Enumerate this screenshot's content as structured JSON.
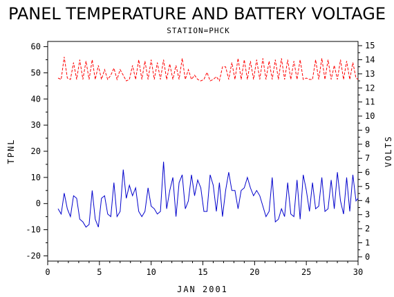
{
  "chart_data": {
    "type": "line",
    "title": "PANEL TEMPERATURE AND BATTERY VOLTAGE",
    "subtitle": "STATION=PHCK",
    "xlabel": "JAN 2001",
    "ylabel": "TPNL",
    "y2label": "VOLTS",
    "xlim": [
      0,
      30
    ],
    "ylim": [
      -22,
      62
    ],
    "y2lim": [
      -0.3,
      15.3
    ],
    "xticks": [
      "0",
      "5",
      "10",
      "15",
      "20",
      "25",
      "30"
    ],
    "yticks": [
      "-20",
      "-10",
      "0",
      "10",
      "20",
      "30",
      "40",
      "50",
      "60"
    ],
    "y2ticks": [
      "0",
      "1",
      "2",
      "3",
      "4",
      "5",
      "6",
      "7",
      "8",
      "9",
      "10",
      "11",
      "12",
      "13",
      "14",
      "15"
    ],
    "grid": false,
    "series": [
      {
        "axis": "left",
        "color": "#0000cc",
        "dash": "solid",
        "x": [
          1.0,
          1.3,
          1.6,
          1.9,
          2.2,
          2.5,
          2.8,
          3.1,
          3.4,
          3.7,
          4.0,
          4.3,
          4.6,
          4.9,
          5.2,
          5.5,
          5.8,
          6.1,
          6.4,
          6.7,
          7.0,
          7.3,
          7.6,
          7.9,
          8.2,
          8.5,
          8.8,
          9.1,
          9.4,
          9.7,
          10.0,
          10.3,
          10.6,
          10.9,
          11.2,
          11.5,
          11.8,
          12.1,
          12.4,
          12.7,
          13.0,
          13.3,
          13.6,
          13.9,
          14.2,
          14.5,
          14.8,
          15.1,
          15.4,
          15.7,
          16.0,
          16.3,
          16.6,
          16.9,
          17.2,
          17.5,
          17.8,
          18.1,
          18.4,
          18.7,
          19.0,
          19.3,
          19.6,
          19.9,
          20.2,
          20.5,
          20.8,
          21.1,
          21.4,
          21.7,
          22.0,
          22.3,
          22.6,
          22.9,
          23.2,
          23.5,
          23.8,
          24.1,
          24.4,
          24.7,
          25.0,
          25.3,
          25.6,
          25.9,
          26.2,
          26.5,
          26.8,
          27.1,
          27.4,
          27.7,
          28.0,
          28.3,
          28.6,
          28.9,
          29.2,
          29.5,
          29.8,
          30.0
        ],
        "y": [
          -2,
          -4,
          4,
          -2,
          -5,
          3,
          2,
          -6,
          -7,
          -9,
          -8,
          5,
          -6,
          -9,
          2,
          3,
          -4,
          -5,
          8,
          -5,
          -3,
          13,
          2,
          7,
          3,
          6,
          -3,
          -5,
          -3,
          6,
          -1,
          -2,
          -4,
          -3,
          16,
          -2,
          5,
          10,
          -5,
          8,
          11,
          -2,
          1,
          11,
          3,
          9,
          6,
          -3,
          -3,
          11,
          7,
          -3,
          8,
          -5,
          5,
          12,
          5,
          5,
          -2,
          5,
          6,
          10,
          6,
          3,
          5,
          3,
          -1,
          -5,
          -3,
          10,
          -7,
          -6,
          -2,
          -5,
          8,
          -4,
          -5,
          9,
          -6,
          11,
          5,
          -3,
          8,
          -2,
          -1,
          10,
          -3,
          -2,
          9,
          -2,
          12,
          1,
          -4,
          10,
          -3,
          11,
          1,
          2
        ]
      },
      {
        "axis": "right",
        "color": "#ff0000",
        "dash": "dashed",
        "x": [
          1.0,
          1.3,
          1.6,
          1.9,
          2.2,
          2.5,
          2.8,
          3.1,
          3.4,
          3.7,
          4.0,
          4.3,
          4.6,
          4.9,
          5.2,
          5.5,
          5.8,
          6.1,
          6.4,
          6.7,
          7.0,
          7.3,
          7.6,
          7.9,
          8.2,
          8.5,
          8.8,
          9.1,
          9.4,
          9.7,
          10.0,
          10.3,
          10.6,
          10.9,
          11.2,
          11.5,
          11.8,
          12.1,
          12.4,
          12.7,
          13.0,
          13.3,
          13.6,
          13.9,
          14.2,
          14.5,
          14.8,
          15.1,
          15.4,
          15.7,
          16.0,
          16.3,
          16.6,
          16.9,
          17.2,
          17.5,
          17.8,
          18.1,
          18.4,
          18.7,
          19.0,
          19.3,
          19.6,
          19.9,
          20.2,
          20.5,
          20.8,
          21.1,
          21.4,
          21.7,
          22.0,
          22.3,
          22.6,
          22.9,
          23.2,
          23.5,
          23.8,
          24.1,
          24.4,
          24.7,
          25.0,
          25.3,
          25.6,
          25.9,
          26.2,
          26.5,
          26.8,
          27.1,
          27.4,
          27.7,
          28.0,
          28.3,
          28.6,
          28.9,
          29.2,
          29.5,
          29.8,
          30.0
        ],
        "y": [
          12.7,
          12.6,
          14.2,
          12.7,
          12.6,
          13.8,
          12.6,
          14.0,
          12.6,
          13.9,
          12.6,
          14.0,
          12.6,
          13.6,
          12.6,
          13.3,
          12.6,
          12.9,
          13.4,
          12.6,
          13.3,
          12.9,
          12.5,
          12.6,
          13.6,
          12.6,
          14.0,
          12.6,
          13.9,
          12.6,
          14.0,
          12.6,
          13.8,
          12.6,
          14.0,
          12.6,
          13.7,
          12.6,
          13.6,
          12.6,
          14.1,
          12.6,
          13.3,
          12.6,
          12.9,
          12.6,
          12.5,
          12.6,
          13.1,
          12.5,
          12.6,
          12.8,
          12.5,
          13.5,
          13.5,
          12.6,
          13.8,
          12.6,
          14.1,
          12.6,
          14.0,
          12.6,
          13.9,
          12.6,
          14.0,
          12.6,
          14.1,
          12.6,
          13.9,
          12.6,
          14.0,
          12.6,
          14.1,
          12.6,
          14.0,
          12.6,
          13.9,
          12.6,
          14.0,
          12.6,
          12.7,
          12.6,
          12.6,
          14.0,
          12.6,
          14.1,
          12.6,
          14.0,
          12.6,
          13.6,
          12.6,
          14.0,
          12.6,
          13.9,
          12.6,
          13.8,
          12.7,
          12.6
        ]
      }
    ]
  }
}
